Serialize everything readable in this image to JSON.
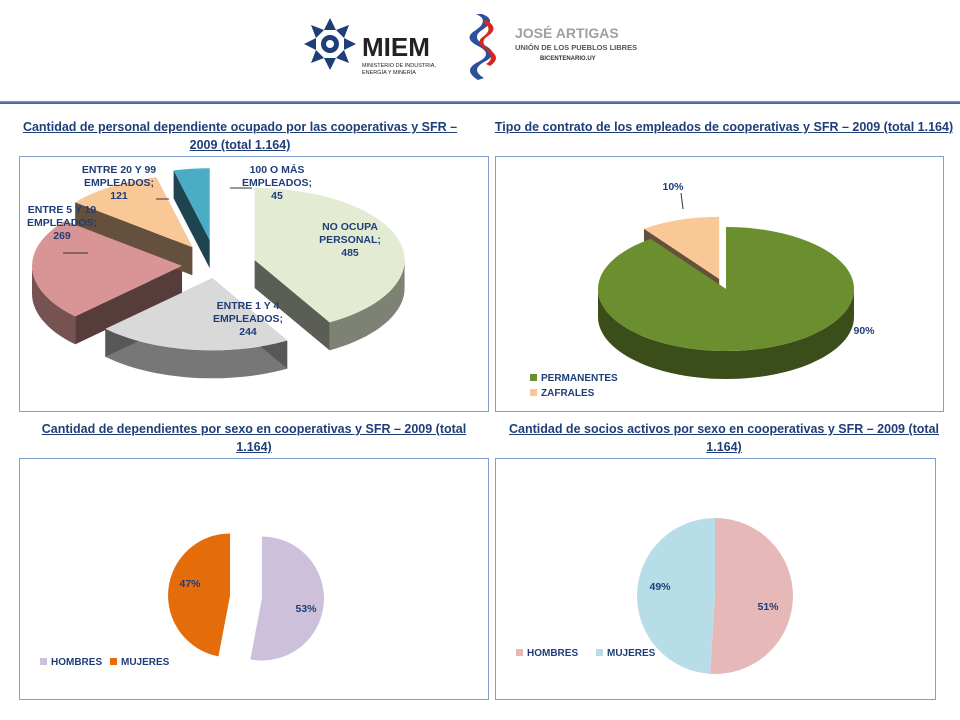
{
  "header": {
    "miem_logo": {
      "name": "MIEM",
      "subtitle_lines": [
        "MINISTERIO DE INDUSTRIA,",
        "ENERGÍA Y MINERÍA"
      ]
    },
    "artigas_logo": {
      "line1": "JOSÉ ARTIGAS",
      "line2": "UNIÓN DE LOS PUEBLOS LIBRES",
      "line3": "BICENTENARIO.UY"
    }
  },
  "colors": {
    "title": "#1f3e78",
    "label": "#1f3e78",
    "panel_border": "#7f9fcf",
    "no_ocupa": "#e3ecd3",
    "entre1y4": "#d9d9d9",
    "entre5y19": "#d99595",
    "entre20y99": "#fac796",
    "cien_o_mas": "#4bacc6",
    "permanentes": "#6b8e2e",
    "zafrales": "#fac796",
    "dep_hombres": "#ccc0da",
    "dep_mujeres": "#e46c0a",
    "soc_hombres": "#e6b9b8",
    "soc_mujeres": "#b7dde8"
  },
  "chart_data": [
    {
      "type": "pie",
      "title": "Cantidad de personal dependiente ocupado por las cooperativas y SFR – 2009 (total 1.164)",
      "categories": [
        "NO OCUPA PERSONAL",
        "ENTRE 1 Y 4 EMPLEADOS",
        "ENTRE 5 Y 19 EMPLEADOS",
        "ENTRE 20 Y 99 EMPLEADOS",
        "100 O MÁS EMPLEADOS"
      ],
      "values": [
        485,
        244,
        269,
        121,
        45
      ],
      "data_labels": [
        [
          "NO OCUPA",
          "PERSONAL;",
          "485"
        ],
        [
          "ENTRE 1 Y 4",
          "EMPLEADOS;",
          "244"
        ],
        [
          "ENTRE 5 Y 19",
          "EMPLEADOS;",
          "269"
        ],
        [
          "ENTRE  20 Y 99",
          "EMPLEADOS;",
          "121"
        ],
        [
          "100 O MÁS",
          "EMPLEADOS;",
          "45"
        ]
      ],
      "style": "3d-exploded"
    },
    {
      "type": "pie",
      "title": "Tipo de contrato de los empleados de cooperativas  y  SFR – 2009 (total 1.164)",
      "categories": [
        "PERMANENTES",
        "ZAFRALES"
      ],
      "values": [
        90,
        10
      ],
      "data_labels": [
        "90%",
        "10%"
      ],
      "legend": "bottom-left",
      "style": "3d-exploded"
    },
    {
      "type": "pie",
      "title": "Cantidad de dependientes por sexo en cooperativas y SFR – 2009 (total 1.164)",
      "categories": [
        "HOMBRES",
        "MUJERES"
      ],
      "values": [
        53,
        47
      ],
      "data_labels": [
        "53%",
        "47%"
      ],
      "legend": "bottom-left",
      "style": "exploded"
    },
    {
      "type": "pie",
      "title": "Cantidad de socios activos por sexo en cooperativas y SFR – 2009 (total 1.164)",
      "categories": [
        "HOMBRES",
        "MUJERES"
      ],
      "values": [
        51,
        49
      ],
      "data_labels": [
        "51%",
        "49%"
      ],
      "legend": "bottom-left"
    }
  ]
}
